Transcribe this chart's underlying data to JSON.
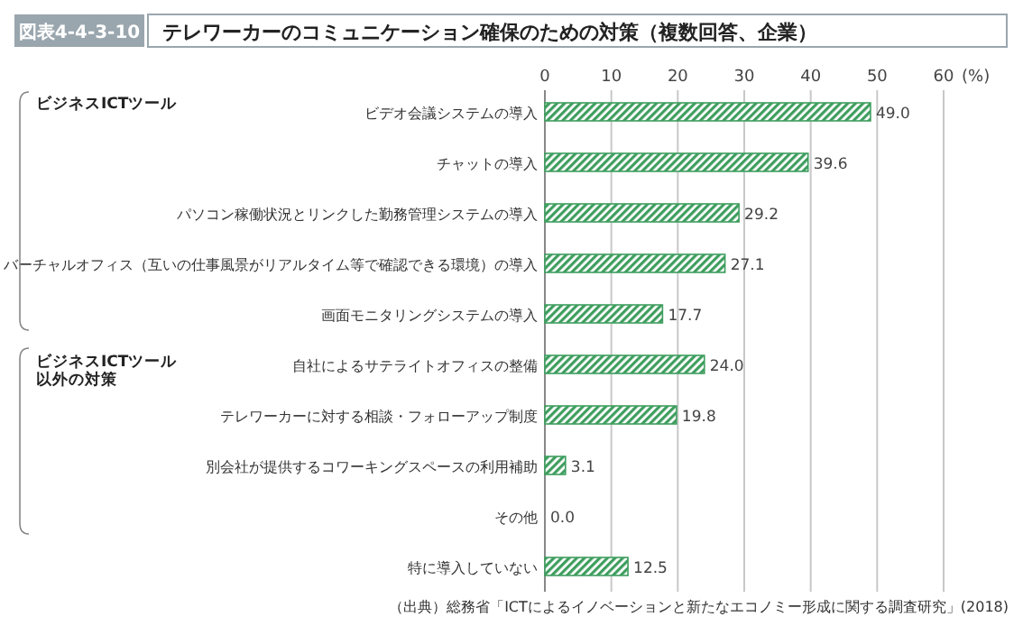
{
  "chart_data": {
    "type": "bar",
    "orientation": "horizontal",
    "title": "テレワーカーのコミュニケーション確保のための対策（複数回答、企業）",
    "xlabel": "(%)",
    "categories": [
      "ビデオ会議システムの導入",
      "チャットの導入",
      "パソコン稼働状況とリンクした勤務管理システムの導入",
      "バーチャルオフィス（互いの仕事風景がリアルタイム等で確認できる環境）の導入",
      "画面モニタリングシステムの導入",
      "自社によるサテライトオフィスの整備",
      "テレワーカーに対する相談・フォローアップ制度",
      "別会社が提供するコワーキングスペースの利用補助",
      "その他",
      "特に導入していない"
    ],
    "values": [
      49.0,
      39.6,
      29.2,
      27.1,
      17.7,
      24.0,
      19.8,
      3.1,
      0.0,
      12.5
    ],
    "value_labels": [
      "49.0",
      "39.6",
      "29.2",
      "27.1",
      "17.7",
      "24.0",
      "19.8",
      "3.1",
      "0.0",
      "12.5"
    ],
    "color": "#3f9e5f",
    "xlim": [
      0,
      60
    ],
    "xticks": [
      0,
      10,
      20,
      30,
      40,
      50,
      60
    ],
    "grid": "x",
    "annotations": [
      "図表4-4-3-10",
      "ビジネスICTツール",
      "ビジネスICTツール以外の対策",
      "（出典）総務省「ICTによるイノベーションと新たなエコノミー形成に関する調査研究」(2018)"
    ]
  }
}
